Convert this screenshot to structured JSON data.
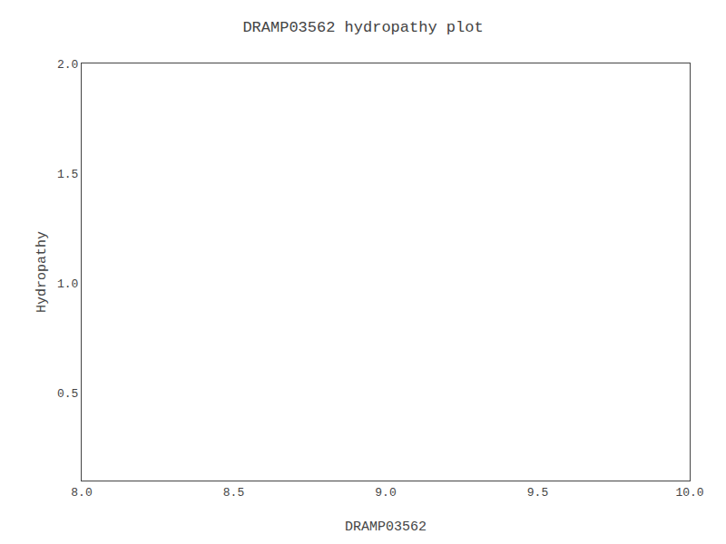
{
  "chart_data": {
    "type": "line",
    "title": "DRAMP03562 hydropathy plot",
    "xlabel": "DRAMP03562",
    "ylabel": "Hydropathy",
    "series": [],
    "xlim": [
      8.0,
      10.0
    ],
    "xticks": [
      {
        "value": 8.0,
        "label": "8.0"
      },
      8.5,
      {
        "value": 9.0,
        "label": "9.0"
      },
      9.5,
      {
        "value": 10.0,
        "label": "10.0"
      }
    ],
    "ylim": [
      0.1,
      2.0
    ],
    "yticks": [
      0.5,
      {
        "value": 1.0,
        "label": "1.0"
      },
      1.5,
      {
        "value": 2.0,
        "label": "2.0"
      }
    ],
    "grid": false
  }
}
